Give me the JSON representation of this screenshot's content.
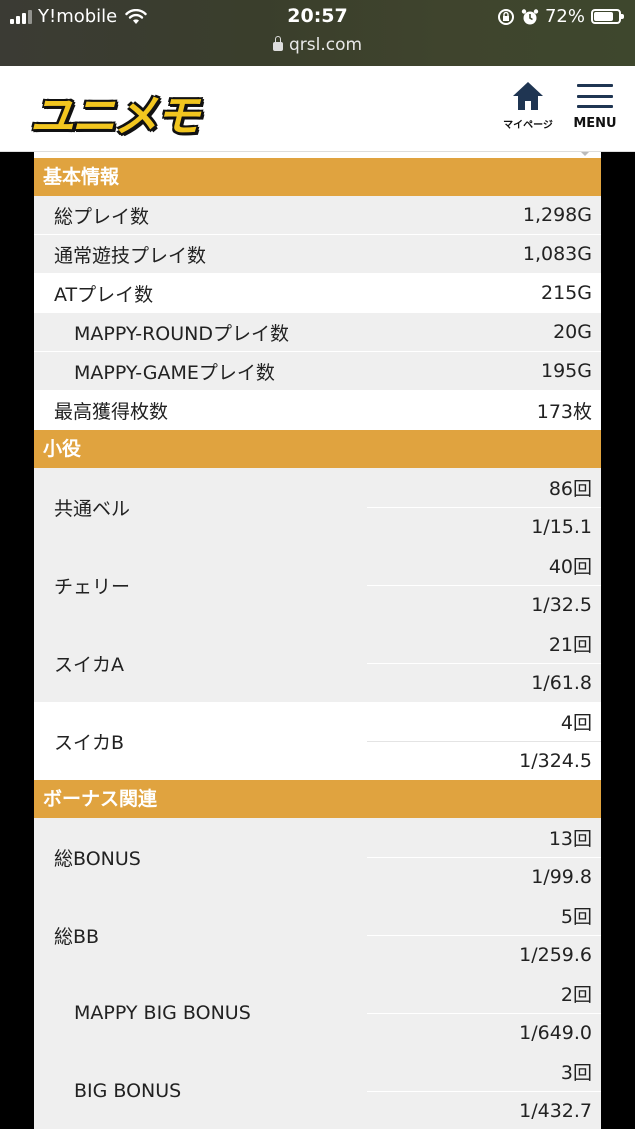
{
  "status": {
    "carrier": "Y!mobile",
    "time": "20:57",
    "battery": "72%",
    "url": "qrsl.com"
  },
  "header": {
    "logo": "ユニメモ",
    "mypage_label": "マイページ",
    "menu_label": "MENU"
  },
  "basic": {
    "title": "基本情報",
    "rows": [
      {
        "label": "総プレイ数",
        "value": "1,298G"
      },
      {
        "label": "通常遊技プレイ数",
        "value": "1,083G"
      },
      {
        "label": "ATプレイ数",
        "value": "215G"
      },
      {
        "label": "MAPPY-ROUNDプレイ数",
        "value": "20G"
      },
      {
        "label": "MAPPY-GAMEプレイ数",
        "value": "195G"
      },
      {
        "label": "最高獲得枚数",
        "value": "173枚"
      }
    ]
  },
  "koyaku": {
    "title": "小役",
    "rows": [
      {
        "label": "共通ベル",
        "count": "86回",
        "prob": "1/15.1"
      },
      {
        "label": "チェリー",
        "count": "40回",
        "prob": "1/32.5"
      },
      {
        "label": "スイカA",
        "count": "21回",
        "prob": "1/61.8"
      },
      {
        "label": "スイカB",
        "count": "4回",
        "prob": "1/324.5"
      }
    ]
  },
  "bonus": {
    "title": "ボーナス関連",
    "rows": [
      {
        "label": "総BONUS",
        "count": "13回",
        "prob": "1/99.8"
      },
      {
        "label": "総BB",
        "count": "5回",
        "prob": "1/259.6"
      },
      {
        "label": "MAPPY BIG BONUS",
        "count": "2回",
        "prob": "1/649.0"
      },
      {
        "label": "BIG BONUS",
        "count": "3回",
        "prob": "1/432.7"
      }
    ]
  }
}
